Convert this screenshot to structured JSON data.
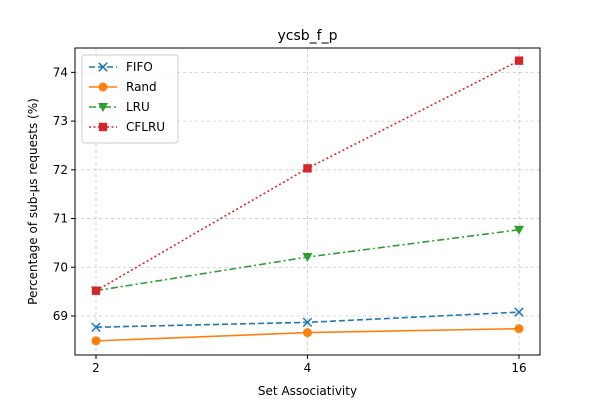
{
  "chart_data": {
    "type": "line",
    "title": "ycsb_f_p",
    "xlabel": "Set Associativity",
    "ylabel": "Percentage of sub-µs requests (%)",
    "categories": [
      "2",
      "4",
      "16"
    ],
    "ylim": [
      68.2,
      74.5
    ],
    "yticks": [
      69,
      70,
      71,
      72,
      73,
      74
    ],
    "grid": true,
    "legend_position": "top-left",
    "series": [
      {
        "name": "FIFO",
        "values": [
          68.77,
          68.87,
          69.08
        ],
        "color": "#1f77b4",
        "linestyle": "dashed",
        "marker": "x"
      },
      {
        "name": "Rand",
        "values": [
          68.49,
          68.66,
          68.74
        ],
        "color": "#ff7f0e",
        "linestyle": "solid",
        "marker": "circle"
      },
      {
        "name": "LRU",
        "values": [
          69.52,
          70.21,
          70.77
        ],
        "color": "#2ca02c",
        "linestyle": "dashdot",
        "marker": "triangle-down"
      },
      {
        "name": "CFLRU",
        "values": [
          69.52,
          72.03,
          74.24
        ],
        "color": "#d62728",
        "linestyle": "dotted",
        "marker": "square"
      }
    ]
  }
}
